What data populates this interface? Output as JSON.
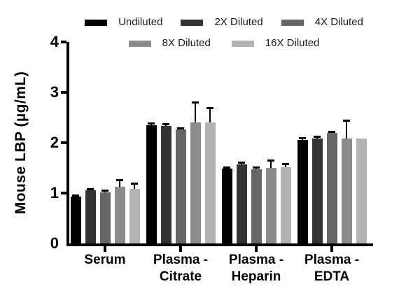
{
  "figure": {
    "background": "#ffffff"
  },
  "chart_data": {
    "type": "bar",
    "title": "",
    "ylabel": "Mouse LBP (µg/mL)",
    "xlabel": "",
    "ylim": [
      0,
      4
    ],
    "yticks": [
      "0",
      "1",
      "2",
      "3",
      "4"
    ],
    "grid": false,
    "legend_position": "top",
    "legend_rows": [
      [
        "Undiluted",
        "2X Diluted",
        "4X Diluted"
      ],
      [
        "8X Diluted",
        "16X Diluted"
      ]
    ],
    "categories": [
      "Serum",
      "Plasma - Citrate",
      "Plasma - Heparin",
      "Plasma - EDTA"
    ],
    "category_lines": [
      [
        "Serum"
      ],
      [
        "Plasma -",
        "Citrate"
      ],
      [
        "Plasma -",
        "Heparin"
      ],
      [
        "Plasma -",
        "EDTA"
      ]
    ],
    "series": [
      {
        "name": "Undiluted",
        "color": "#000000",
        "values": [
          0.93,
          2.35,
          1.48,
          2.06
        ],
        "errors_plus": [
          0.03,
          0.04,
          0.03,
          0.04
        ]
      },
      {
        "name": "2X Diluted",
        "color": "#333333",
        "values": [
          1.05,
          2.34,
          1.57,
          2.08
        ],
        "errors_plus": [
          0.04,
          0.04,
          0.04,
          0.04
        ]
      },
      {
        "name": "4X Diluted",
        "color": "#666666",
        "values": [
          1.02,
          2.26,
          1.47,
          2.19
        ],
        "errors_plus": [
          0.04,
          0.03,
          0.04,
          0.03
        ]
      },
      {
        "name": "8X Diluted",
        "color": "#8c8c8c",
        "values": [
          1.13,
          2.4,
          1.5,
          2.09
        ],
        "errors_plus": [
          0.13,
          0.4,
          0.15,
          0.36
        ]
      },
      {
        "name": "16X Diluted",
        "color": "#b3b3b3",
        "values": [
          1.08,
          2.4,
          1.52,
          2.08
        ],
        "errors_plus": [
          0.11,
          0.3,
          0.07,
          0.0
        ]
      }
    ],
    "error_bar_color": "#000000",
    "axis_color": "#000000"
  }
}
